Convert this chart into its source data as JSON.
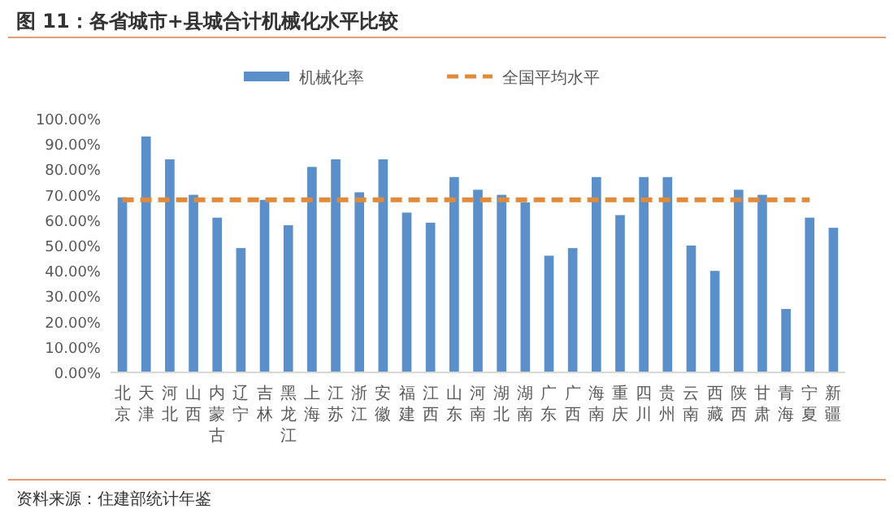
{
  "chart_data": {
    "type": "bar",
    "title": "图 11：各省城市+县城合计机械化水平比较",
    "categories": [
      "北京",
      "天津",
      "河北",
      "山西",
      "内蒙古",
      "辽宁",
      "吉林",
      "黑龙江",
      "上海",
      "江苏",
      "浙江",
      "安徽",
      "福建",
      "江西",
      "山东",
      "河南",
      "湖北",
      "湖南",
      "广东",
      "广西",
      "海南",
      "重庆",
      "四川",
      "贵州",
      "云南",
      "西藏",
      "陕西",
      "甘肃",
      "青海",
      "宁夏",
      "新疆"
    ],
    "series": [
      {
        "name": "机械化率",
        "color": "#5b8fc9",
        "values": [
          69,
          93,
          84,
          70,
          61,
          49,
          68,
          58,
          81,
          84,
          71,
          84,
          63,
          59,
          77,
          72,
          70,
          67,
          46,
          49,
          77,
          62,
          77,
          77,
          50,
          40,
          72,
          70,
          25,
          61,
          57
        ]
      },
      {
        "name": "全国平均水平",
        "type": "line",
        "color": "#e08a3c",
        "line_style": "dashed",
        "marker": "none",
        "values": [
          68,
          68,
          68,
          68,
          68,
          68,
          68,
          68,
          68,
          68,
          68,
          68,
          68,
          68,
          68,
          68,
          68,
          68,
          68,
          68,
          68,
          68,
          68,
          68,
          68,
          68,
          68,
          68,
          68,
          68,
          null
        ]
      }
    ],
    "ylim": [
      0,
      100
    ],
    "yticks": [
      {
        "value": 0,
        "label": "0.00%"
      },
      {
        "value": 10,
        "label": "10.00%"
      },
      {
        "value": 20,
        "label": "20.00%"
      },
      {
        "value": 30,
        "label": "30.00%"
      },
      {
        "value": 40,
        "label": "40.00%"
      },
      {
        "value": 50,
        "label": "50.00%"
      },
      {
        "value": 60,
        "label": "60.00%"
      },
      {
        "value": 70,
        "label": "70.00%"
      },
      {
        "value": 80,
        "label": "80.00%"
      },
      {
        "value": 90,
        "label": "90.00%"
      },
      {
        "value": 100,
        "label": "100.00%"
      }
    ],
    "legend": "top",
    "annotations": [
      "资料来源：住建部统计年鉴"
    ]
  }
}
